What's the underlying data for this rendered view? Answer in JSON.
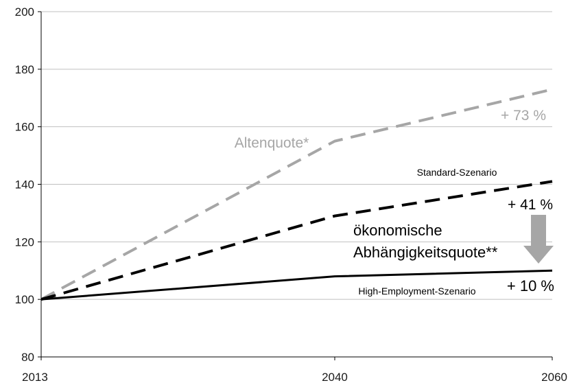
{
  "chart_data": {
    "type": "line",
    "title": "",
    "xlabel": "",
    "ylabel": "",
    "xlim": [
      2013,
      2060
    ],
    "ylim": [
      80,
      200
    ],
    "y_ticks": [
      80,
      100,
      120,
      140,
      160,
      180,
      200
    ],
    "x_ticks": [
      2013,
      2040,
      2060
    ],
    "grid": "horizontal",
    "series": [
      {
        "name": "Altenquote*",
        "color": "#a6a6a6",
        "style": "dashed",
        "x": [
          2013,
          2040,
          2060
        ],
        "y": [
          100,
          155,
          173
        ]
      },
      {
        "name": "ökonomische Abhängigkeitsquote**",
        "color": "#000000",
        "style": "dashed",
        "x": [
          2013,
          2040,
          2060
        ],
        "y": [
          100,
          129,
          141
        ]
      },
      {
        "name": "",
        "color": "#000000",
        "style": "solid",
        "x": [
          2013,
          2040,
          2060
        ],
        "y": [
          100,
          108,
          110
        ]
      }
    ],
    "annotations": {
      "alten_label": "Altenquote*",
      "alten_change": "+ 73 %",
      "standard_label": "Standard-Szenario",
      "standard_change": "+ 41 %",
      "oek_line1": "ökonomische",
      "oek_line2": "Abhängigkeitsquote**",
      "high_label": "High-Employment-Szenario",
      "high_change": "+ 10 %"
    },
    "arrow_color": "#a6a6a6"
  }
}
